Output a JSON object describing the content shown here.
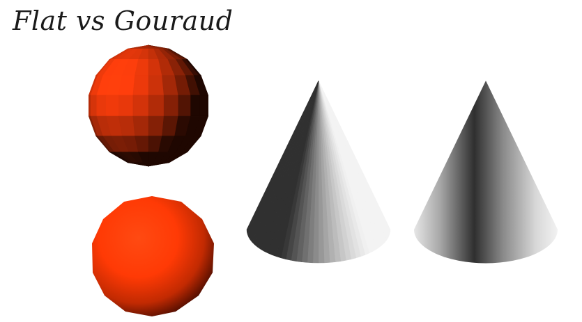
{
  "title": "Flat vs Gouraud",
  "colors": {
    "sphere_base": "#ff3c0a",
    "sphere_shadow": "#2a0500",
    "cone_light": "#f2f2f2",
    "cone_dark": "#2e2e2e",
    "background": "#ffffff"
  }
}
